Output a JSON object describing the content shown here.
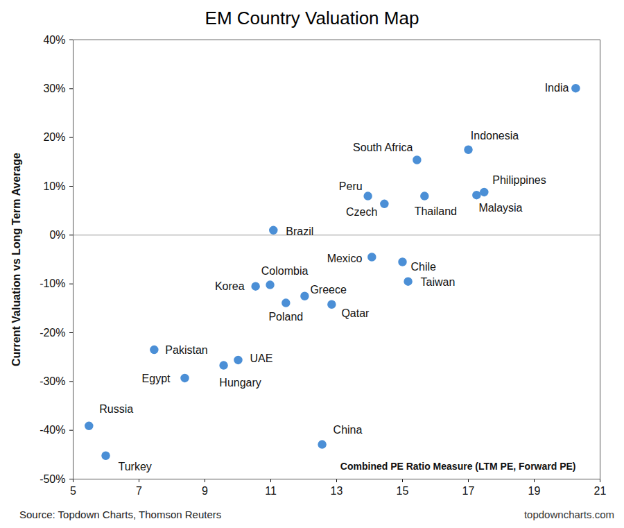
{
  "chart_data": {
    "type": "scatter",
    "title": "EM Country Valuation Map",
    "y_label": "Current Valuation vs Long Term Average",
    "annotation": "Combined PE Ratio Measure (LTM PE, Forward PE)",
    "source": "Source: Topdown Charts, Thomson Reuters",
    "website": "topdowncharts.com",
    "color": "#4b8fd6",
    "labels": [
      "India",
      "Indonesia",
      "South Africa",
      "Peru",
      "Czech",
      "Thailand",
      "Philippines",
      "Malaysia",
      "Brazil",
      "Mexico",
      "Chile",
      "Taiwan",
      "Korea",
      "Colombia",
      "Greece",
      "Poland",
      "Qatar",
      "Pakistan",
      "UAE",
      "Hungary",
      "Egypt",
      "Russia",
      "Turkey",
      "China"
    ],
    "x": [
      20.26,
      17.0,
      15.44,
      13.95,
      14.45,
      15.67,
      17.48,
      17.25,
      11.08,
      14.07,
      15.0,
      15.17,
      10.54,
      10.98,
      12.03,
      11.46,
      12.85,
      7.46,
      10.01,
      9.57,
      8.39,
      5.48,
      5.99,
      12.56
    ],
    "values": [
      30.1,
      17.5,
      15.4,
      8.0,
      6.4,
      8.0,
      8.8,
      8.2,
      1.0,
      -4.5,
      -5.5,
      -9.5,
      -10.5,
      -10.2,
      -12.5,
      -13.9,
      -14.2,
      -23.5,
      -25.6,
      -26.7,
      -29.3,
      -39.1,
      -45.2,
      -42.9
    ],
    "xlim": [
      5,
      21
    ],
    "xticks": [
      5,
      7,
      9,
      11,
      13,
      15,
      17,
      19,
      21
    ],
    "ylim": [
      -50,
      40
    ],
    "yticks": [
      {
        "value": -50,
        "label": "-50%"
      },
      {
        "value": -40,
        "label": "-40%"
      },
      {
        "value": -30,
        "label": "-30%"
      },
      {
        "value": -20,
        "label": "-20%"
      },
      {
        "value": -10,
        "label": "-10%"
      },
      {
        "value": 0,
        "label": "0%"
      },
      {
        "value": 10,
        "label": "10%"
      },
      {
        "value": 20,
        "label": "20%"
      },
      {
        "value": 30,
        "label": "30%"
      },
      {
        "value": 40,
        "label": "40%"
      }
    ],
    "grid": false
  }
}
